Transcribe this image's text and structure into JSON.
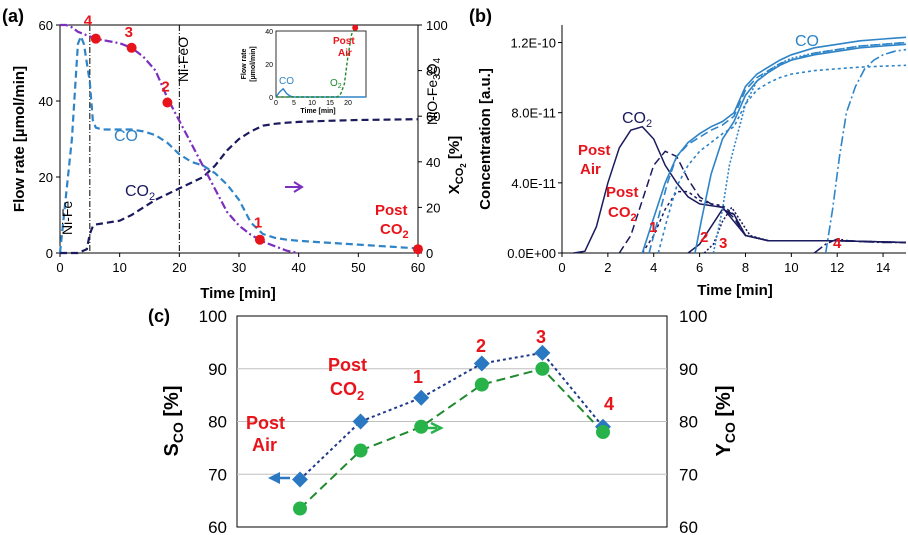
{
  "chart_data": [
    {
      "panel": "(a)",
      "type": "line",
      "xlabel": "Time [min]",
      "ylabel": "Flow rate [µmol/min]",
      "ylabel_right": "X_CO2 [%]",
      "ylabel_right_main": "X",
      "ylabel_right_sub": "CO",
      "ylabel_right_sub2": "2",
      "ylabel_right_unit": " [%]",
      "xlim": [
        0,
        60
      ],
      "ylim": [
        0,
        60
      ],
      "ylim_right": [
        0,
        100
      ],
      "x_ticks": [
        "0",
        "10",
        "20",
        "30",
        "40",
        "50",
        "60"
      ],
      "y_ticks": [
        "0",
        "20",
        "40",
        "60"
      ],
      "y_ticks_right": [
        "0",
        "20",
        "40",
        "60",
        "80",
        "100"
      ],
      "phase_labels": [
        "Ni-Fe",
        "Ni-FeO",
        "NiO-Fe3O4"
      ],
      "phase_label_nio": "NiO-Fe",
      "phase_label_nio_sub": "3",
      "phase_label_nio_end": "O",
      "phase_label_nio_sub2": "4",
      "series": [
        {
          "name": "CO",
          "color": "#2e84c7",
          "dash": "dashed",
          "x": [
            0,
            2,
            3,
            3.5,
            4,
            5,
            5.5,
            6,
            7,
            8,
            10,
            12,
            14,
            16,
            18,
            20,
            22,
            24,
            26,
            28,
            30,
            32,
            34,
            36,
            38,
            40,
            42,
            44,
            46,
            48,
            50,
            52,
            54,
            56,
            58,
            60
          ],
          "y": [
            0,
            30,
            55,
            57,
            55,
            45,
            35,
            33,
            32.5,
            32.5,
            32.5,
            32.5,
            32,
            31,
            29,
            26,
            24,
            23,
            21,
            18,
            14,
            8,
            5,
            4,
            3.5,
            3.2,
            3,
            2.8,
            2.6,
            2.4,
            2.2,
            2,
            1.8,
            1.6,
            1.4,
            1.2
          ]
        },
        {
          "name": "CO2",
          "color": "#1a1a5e",
          "dash": "dashed",
          "x": [
            0,
            3,
            4.5,
            5,
            5.5,
            6,
            8,
            10,
            12,
            14,
            16,
            18,
            20,
            22,
            24,
            26,
            28,
            30,
            32,
            34,
            36,
            38,
            40,
            45,
            50,
            55,
            60
          ],
          "y": [
            0,
            0,
            1,
            5,
            7,
            7.5,
            8,
            8.5,
            10,
            12,
            14,
            15.5,
            17,
            18.5,
            20,
            23,
            27,
            30,
            32,
            33.5,
            34,
            34.3,
            34.5,
            34.8,
            35,
            35.1,
            35.2
          ]
        },
        {
          "name": "X_CO2",
          "color": "#7b2fbf",
          "dash": "dashdot",
          "axis": "right",
          "x": [
            0,
            1,
            2,
            3,
            4,
            5,
            6,
            8,
            10,
            12,
            14,
            16,
            18,
            20,
            22,
            24,
            26,
            28,
            30,
            32,
            34,
            36,
            38,
            40
          ],
          "y": [
            100,
            100,
            99,
            97,
            96,
            95,
            94,
            93,
            92,
            90,
            86,
            80,
            68,
            58,
            48,
            38,
            28,
            18,
            12,
            8,
            5,
            3,
            1,
            0
          ]
        }
      ],
      "markers": [
        {
          "label": "4",
          "x": 6,
          "y": 94,
          "axis": "right"
        },
        {
          "label": "3",
          "x": 12,
          "y": 90,
          "axis": "right"
        },
        {
          "label": "2",
          "x": 18,
          "y": 66,
          "axis": "right"
        },
        {
          "label": "1",
          "x": 33.5,
          "y": 3.5,
          "axis": "left"
        },
        {
          "label": "Post CO2",
          "x": 60,
          "y": 1,
          "axis": "left"
        }
      ],
      "marker_label_post": "Post",
      "marker_label_co2_main": "CO",
      "marker_label_co2_sub": "2",
      "vlines_x": [
        5,
        20
      ],
      "series_labels": {
        "co": "CO",
        "co2_main": "CO",
        "co2_sub": "2"
      },
      "inset": {
        "xlabel": "Time [min]",
        "ylabel_line1": "Flow rate",
        "ylabel_line2": "[µmol/min]",
        "xlim": [
          0,
          25
        ],
        "ylim": [
          0,
          40
        ],
        "x_ticks": [
          "0",
          "5",
          "10",
          "15",
          "20"
        ],
        "y_ticks": [
          "0",
          "20",
          "40"
        ],
        "label_co": "CO",
        "label_o2_main": "O",
        "label_o2_sub": "2",
        "label_post": "Post",
        "label_air": "Air",
        "series": [
          {
            "name": "CO",
            "color": "#2e84c7",
            "x": [
              0,
              1,
              2,
              3,
              4,
              5,
              25
            ],
            "y": [
              0,
              3,
              5,
              2,
              0.5,
              0,
              0
            ]
          },
          {
            "name": "O2",
            "color": "#1f8a2e",
            "x": [
              0,
              17,
              18,
              19,
              20,
              21,
              22
            ],
            "y": [
              0,
              0,
              2,
              8,
              25,
              38,
              42
            ]
          }
        ],
        "marker": {
          "x": 22,
          "y": 42
        }
      }
    },
    {
      "panel": "(b)",
      "type": "line",
      "xlabel": "Time [min]",
      "ylabel": "Concentration [a.u.]",
      "xlim": [
        0,
        15
      ],
      "ylim": [
        0,
        1.3e-10
      ],
      "x_ticks": [
        "0",
        "2",
        "4",
        "6",
        "8",
        "10",
        "12",
        "14"
      ],
      "y_ticks": [
        "0.0E+00",
        "4.0E-11",
        "8.0E-11",
        "1.2E-10"
      ],
      "y_tick_values": [
        0,
        4e-11,
        8e-11,
        1.2e-10
      ],
      "labels": {
        "co": "CO",
        "co2_main": "CO",
        "co2_sub": "2",
        "post": "Post",
        "air": "Air",
        "post_co2_main": "CO",
        "post_co2_sub": "2",
        "n1": "1",
        "n2": "2",
        "n3": "3",
        "n4": "4"
      },
      "co2_curves": [
        {
          "name": "Post Air",
          "x": [
            0.5,
            1,
            1.5,
            2,
            2.5,
            3,
            3.5,
            4,
            4.5,
            5,
            5.5,
            6,
            7,
            8,
            9,
            10,
            12,
            15
          ],
          "y": [
            0,
            1e-12,
            1.5e-11,
            4e-11,
            6e-11,
            7e-11,
            7.2e-11,
            6.5e-11,
            5e-11,
            4e-11,
            3.2e-11,
            2.8e-11,
            2.6e-11,
            1e-11,
            7e-12,
            7e-12,
            7e-12,
            6e-12
          ]
        },
        {
          "name": "Post CO2",
          "x": [
            2.5,
            3,
            3.5,
            4,
            4.5,
            5,
            5.5,
            6,
            6.5,
            7,
            7.5,
            8,
            9,
            10,
            12,
            15
          ],
          "y": [
            0,
            1e-11,
            3e-11,
            5e-11,
            5.8e-11,
            5.5e-11,
            4.2e-11,
            3.2e-11,
            2.8e-11,
            2.6e-11,
            2e-11,
            1e-11,
            7e-12,
            7e-12,
            7e-12,
            6e-12
          ]
        },
        {
          "name": "1",
          "x": [
            3.5,
            4,
            4.5,
            5,
            5.5,
            6,
            6.5,
            7,
            7.5,
            8,
            9,
            10,
            12,
            15
          ],
          "y": [
            0,
            1e-11,
            2.5e-11,
            3.5e-11,
            3.5e-11,
            3e-11,
            2.8e-11,
            2.7e-11,
            2.2e-11,
            1e-11,
            7e-12,
            7e-12,
            7e-12,
            6e-12
          ]
        },
        {
          "name": "2",
          "x": [
            5.5,
            6,
            6.5,
            7,
            7.5,
            8,
            9,
            10,
            12,
            15
          ],
          "y": [
            0,
            5e-12,
            1.5e-11,
            2.5e-11,
            2.2e-11,
            1e-11,
            7e-12,
            7e-12,
            7e-12,
            6e-12
          ]
        },
        {
          "name": "3",
          "x": [
            6.2,
            6.6,
            7,
            7.4,
            7.8,
            8.2,
            9,
            10,
            12,
            15
          ],
          "y": [
            0,
            5e-12,
            1.8e-11,
            2.6e-11,
            1.8e-11,
            1e-11,
            7e-12,
            7e-12,
            7e-12,
            6e-12
          ]
        },
        {
          "name": "4",
          "x": [
            11,
            11.5,
            12,
            12.5,
            13,
            14,
            15
          ],
          "y": [
            0,
            5e-12,
            8e-12,
            7e-12,
            6.5e-12,
            6e-12,
            6e-12
          ]
        }
      ],
      "co_curves": [
        {
          "name": "Post Air",
          "x": [
            3.5,
            4,
            4.5,
            5,
            5.5,
            6,
            6.5,
            7,
            7.5,
            8,
            8.5,
            9,
            9.5,
            10,
            11,
            12,
            13,
            14,
            15
          ],
          "y": [
            0,
            2e-11,
            4e-11,
            5.5e-11,
            6.3e-11,
            6.8e-11,
            7.2e-11,
            7.5e-11,
            8e-11,
            9.5e-11,
            1.02e-10,
            1.06e-10,
            1.1e-10,
            1.13e-10,
            1.17e-10,
            1.19e-10,
            1.21e-10,
            1.22e-10,
            1.23e-10
          ]
        },
        {
          "name": "Post CO2",
          "x": [
            3.8,
            4.2,
            4.6,
            5,
            5.5,
            6,
            6.5,
            7,
            7.5,
            8,
            8.5,
            9,
            9.5,
            10,
            11,
            12,
            13,
            14,
            15
          ],
          "y": [
            0,
            2e-11,
            4e-11,
            5.5e-11,
            6.2e-11,
            6.6e-11,
            7e-11,
            7.3e-11,
            7.8e-11,
            9.3e-11,
            1e-10,
            1.04e-10,
            1.08e-10,
            1.1e-10,
            1.14e-10,
            1.16e-10,
            1.18e-10,
            1.19e-10,
            1.2e-10
          ]
        },
        {
          "name": "1",
          "x": [
            4.2,
            4.6,
            5,
            5.5,
            6,
            6.5,
            7,
            7.5,
            8,
            8.5,
            9,
            9.5,
            10,
            11,
            12,
            13,
            14,
            15
          ],
          "y": [
            0,
            2e-11,
            3.8e-11,
            5e-11,
            5.8e-11,
            6.3e-11,
            6.8e-11,
            7.2e-11,
            8.5e-11,
            9.3e-11,
            9.7e-11,
            1e-10,
            1.02e-10,
            1.04e-10,
            1.05e-10,
            1.06e-10,
            1.065e-10,
            1.07e-10
          ]
        },
        {
          "name": "2",
          "x": [
            5.8,
            6.1,
            6.5,
            7,
            7.5,
            8,
            8.5,
            9,
            9.5,
            10,
            11,
            12,
            13,
            14,
            15
          ],
          "y": [
            0,
            2e-11,
            4.5e-11,
            6.5e-11,
            7.5e-11,
            9e-11,
            9.8e-11,
            1.03e-10,
            1.07e-10,
            1.1e-10,
            1.13e-10,
            1.15e-10,
            1.17e-10,
            1.18e-10,
            1.19e-10
          ]
        },
        {
          "name": "3",
          "x": [
            6.6,
            7,
            7.3,
            7.7,
            8,
            8.5,
            9,
            9.5,
            10,
            11,
            12,
            13,
            14,
            15
          ],
          "y": [
            0,
            2.5e-11,
            5e-11,
            7e-11,
            8.5e-11,
            9.8e-11,
            1.04e-10,
            1.08e-10,
            1.11e-10,
            1.14e-10,
            1.16e-10,
            1.18e-10,
            1.19e-10,
            1.2e-10
          ]
        },
        {
          "name": "4",
          "x": [
            11.5,
            11.8,
            12.1,
            12.4,
            12.8,
            13.2,
            13.6,
            14,
            14.5,
            15
          ],
          "y": [
            0,
            2.5e-11,
            5.5e-11,
            8e-11,
            9.5e-11,
            1.05e-10,
            1.1e-10,
            1.13e-10,
            1.15e-10,
            1.16e-10
          ]
        }
      ]
    },
    {
      "panel": "(c)",
      "type": "line",
      "ylabel_left_main": "S",
      "ylabel_left_sub": "CO",
      "ylabel_left_unit": " [%]",
      "ylabel_right_main": "Y",
      "ylabel_right_sub": "CO",
      "ylabel_right_unit": " [%]",
      "ylim": [
        60,
        100
      ],
      "y_ticks": [
        "60",
        "70",
        "80",
        "90",
        "100"
      ],
      "categories": [
        "Post Air",
        "Post CO2",
        "1",
        "2",
        "3",
        "4"
      ],
      "category_labels": {
        "post": "Post",
        "air": "Air",
        "co2_main": "CO",
        "co2_sub": "2",
        "n1": "1",
        "n2": "2",
        "n3": "3",
        "n4": "4"
      },
      "series": [
        {
          "name": "S_CO",
          "axis": "left",
          "color": "#1f3a8a",
          "marker_color": "#2b78c2",
          "marker": "diamond",
          "values": [
            69,
            80,
            84.5,
            91,
            93,
            79
          ]
        },
        {
          "name": "Y_CO",
          "axis": "right",
          "color": "#1f8a2e",
          "marker_color": "#27b34a",
          "marker": "circle",
          "values": [
            63.5,
            74.5,
            79,
            87,
            90,
            78
          ]
        }
      ]
    }
  ]
}
